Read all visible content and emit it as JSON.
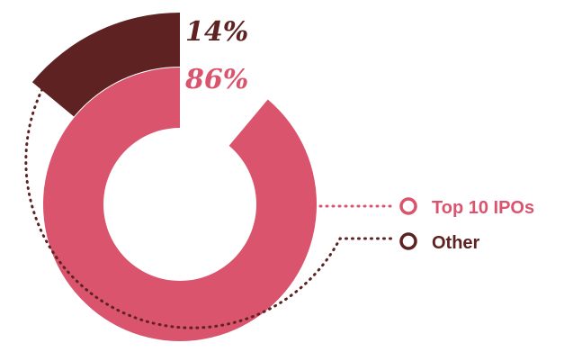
{
  "chart_data": {
    "type": "pie",
    "style": "donut",
    "categories": [
      "Top 10 IPOs",
      "Other"
    ],
    "values": [
      86,
      14
    ],
    "value_labels": [
      "86%",
      "14%"
    ],
    "legend": {
      "placement": "right",
      "items": [
        {
          "label": "Top 10 IPOs",
          "color": "#d9546c"
        },
        {
          "label": "Other",
          "color": "#5e2222"
        }
      ]
    },
    "colors": {
      "primary": "#d9546c",
      "secondary": "#5e2222"
    }
  }
}
